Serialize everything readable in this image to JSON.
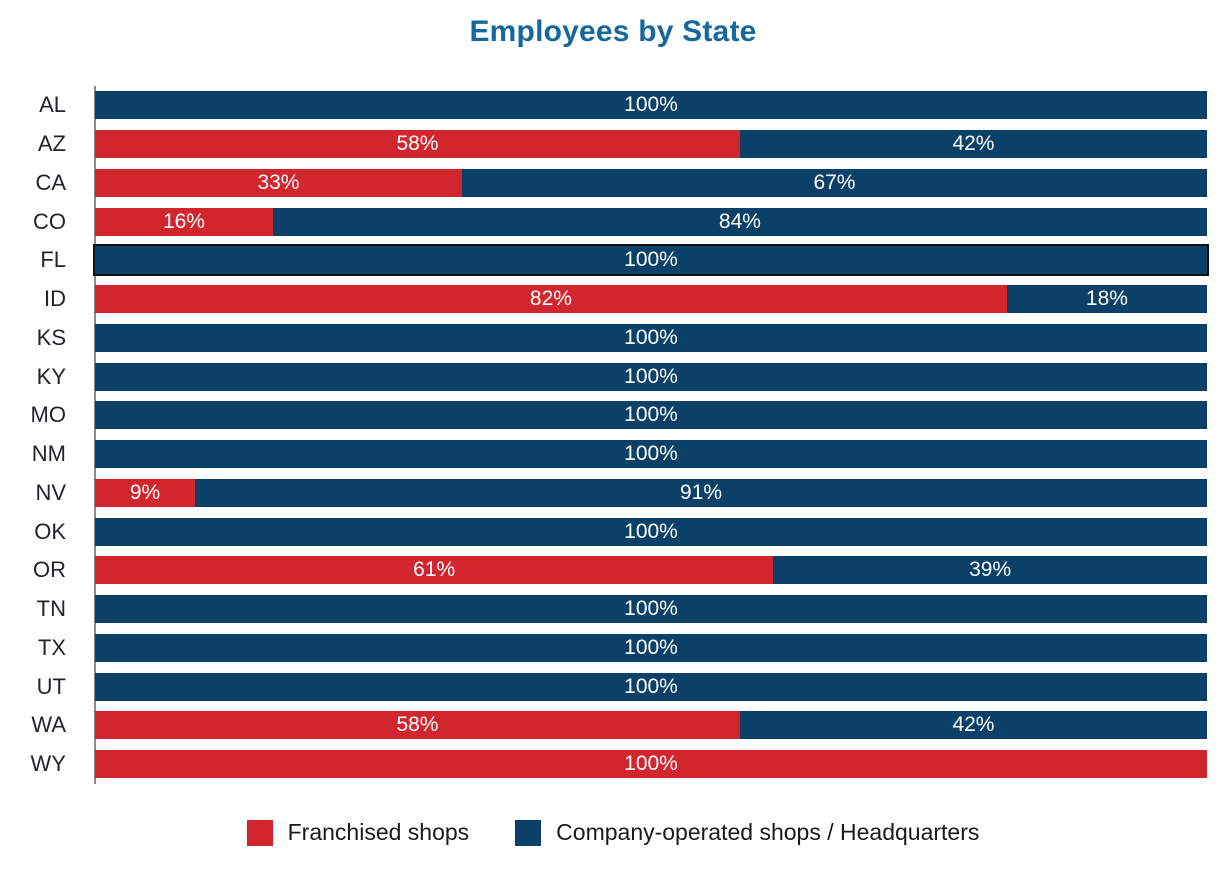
{
  "chart_data": {
    "type": "bar",
    "orientation": "horizontal",
    "stacked": true,
    "title": "Employees by State",
    "title_color": "#15689d",
    "axis_color": "#8a8a8a",
    "value_label_format": "{v}%",
    "value_label_color": "#ffffff",
    "category_label_color": "#212529",
    "legend_position": "bottom",
    "legend_text_color": "#1a1a1a",
    "grid": false,
    "xlim": [
      0,
      100
    ],
    "highlighted_category": "FL",
    "categories": [
      "AL",
      "AZ",
      "CA",
      "CO",
      "FL",
      "ID",
      "KS",
      "KY",
      "MO",
      "NM",
      "NV",
      "OK",
      "OR",
      "TN",
      "TX",
      "UT",
      "WA",
      "WY"
    ],
    "series": [
      {
        "name": "Franchised shops",
        "color": "#d2262f",
        "values": [
          0,
          58,
          33,
          16,
          0,
          82,
          0,
          0,
          0,
          0,
          9,
          0,
          61,
          0,
          0,
          0,
          58,
          100
        ]
      },
      {
        "name": "Company-operated shops / Headquarters",
        "color": "#0b4168",
        "values": [
          100,
          42,
          67,
          84,
          100,
          18,
          100,
          100,
          100,
          100,
          91,
          100,
          39,
          100,
          100,
          100,
          42,
          0
        ]
      }
    ]
  }
}
